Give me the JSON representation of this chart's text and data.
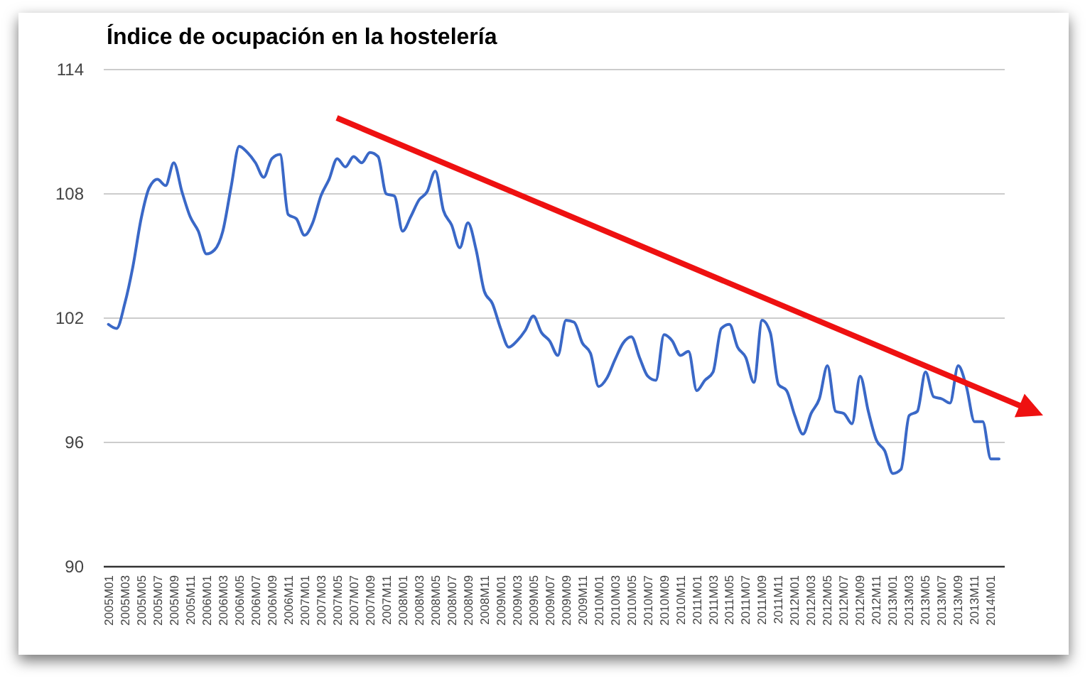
{
  "chart_data": {
    "type": "line",
    "title": "Índice de ocupación en la hostelería",
    "categories": [
      "2005M01",
      null,
      "2005M03",
      null,
      "2005M05",
      null,
      "2005M07",
      null,
      "2005M09",
      null,
      "2005M11",
      null,
      "2006M01",
      null,
      "2006M03",
      null,
      "2006M05",
      null,
      "2006M07",
      null,
      "2006M09",
      null,
      "2006M11",
      null,
      "2007M01",
      null,
      "2007M03",
      null,
      "2007M05",
      null,
      "2007M07",
      null,
      "2007M09",
      null,
      "2007M11",
      null,
      "2008M01",
      null,
      "2008M03",
      null,
      "2008M05",
      null,
      "2008M07",
      null,
      "2008M09",
      null,
      "2008M11",
      null,
      "2009M01",
      null,
      "2009M03",
      null,
      "2009M05",
      null,
      "2009M07",
      null,
      "2009M09",
      null,
      "2009M11",
      null,
      "2010M01",
      null,
      "2010M03",
      null,
      "2010M05",
      null,
      "2010M07",
      null,
      "2010M09",
      null,
      "2010M11",
      null,
      "2011M01",
      null,
      "2011M03",
      null,
      "2011M05",
      null,
      "2011M07",
      null,
      "2011M09",
      null,
      "2011M11",
      null,
      "2012M01",
      null,
      "2012M03",
      null,
      "2012M05",
      null,
      "2012M07",
      null,
      "2012M09",
      null,
      "2012M11",
      null,
      "2013M01",
      null,
      "2013M03",
      null,
      "2013M05",
      null,
      "2013M07",
      null,
      "2013M09",
      null,
      "2013M11",
      null,
      "2014M01",
      null
    ],
    "values": [
      101.7,
      101.5,
      102.7,
      104.5,
      106.8,
      108.3,
      108.7,
      108.4,
      109.5,
      108.1,
      106.9,
      106.2,
      105.1,
      105.3,
      106.2,
      108.3,
      110.3,
      110.0,
      109.5,
      108.8,
      109.7,
      109.9,
      107.0,
      106.8,
      106.0,
      106.6,
      107.9,
      108.7,
      109.7,
      109.3,
      109.8,
      109.5,
      110.0,
      109.8,
      108.0,
      107.9,
      106.2,
      106.9,
      107.7,
      108.1,
      109.1,
      107.2,
      106.5,
      105.4,
      106.6,
      105.3,
      103.3,
      102.7,
      101.5,
      100.6,
      100.9,
      101.4,
      102.1,
      101.3,
      100.9,
      100.2,
      101.9,
      101.8,
      100.8,
      100.3,
      98.7,
      99.1,
      100.0,
      100.8,
      101.1,
      100.1,
      99.2,
      99.0,
      101.2,
      100.9,
      100.2,
      100.4,
      98.5,
      99.0,
      99.4,
      101.5,
      101.7,
      100.6,
      100.1,
      98.9,
      101.9,
      101.3,
      98.8,
      98.5,
      97.3,
      96.4,
      97.4,
      98.1,
      99.7,
      97.5,
      97.4,
      96.9,
      99.2,
      97.5,
      96.1,
      95.6,
      94.5,
      94.7,
      97.3,
      97.5,
      99.4,
      98.2,
      98.1,
      97.9,
      99.7,
      98.7,
      97.0,
      97.0,
      95.2,
      95.2
    ],
    "color": "#3a68c7",
    "ylim": [
      90,
      114
    ],
    "yticks": [
      90,
      96,
      102,
      108,
      114
    ],
    "grid": "y"
  }
}
